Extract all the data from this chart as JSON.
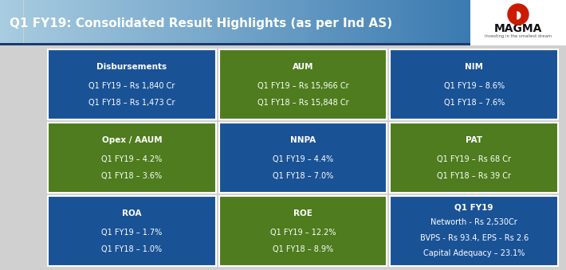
{
  "title": "Q1 FY19: Consolidated Result Highlights (as per Ind AS)",
  "header_bg_left": "#7ab4d4",
  "header_bg_mid": "#4a8ab8",
  "header_text_color": "#ffffff",
  "bg_color": "#d0d0d0",
  "blue": "#1a5296",
  "green": "#4e7c1e",
  "white_text": "#ffffff",
  "cells": [
    {
      "row": 0,
      "col": 0,
      "color": "#1a5296",
      "title": "Disbursements",
      "line1": "Q1 FY19 – Rs 1,840 Cr",
      "line2": "Q1 FY18 – Rs 1,473 Cr",
      "line3": null
    },
    {
      "row": 0,
      "col": 1,
      "color": "#4e7c1e",
      "title": "AUM",
      "line1": "Q1 FY19 – Rs 15,966 Cr",
      "line2": "Q1 FY18 – Rs 15,848 Cr",
      "line3": null
    },
    {
      "row": 0,
      "col": 2,
      "color": "#1a5296",
      "title": "NIM",
      "line1": "Q1 FY19 – 8.6%",
      "line2": "Q1 FY18 – 7.6%",
      "line3": null
    },
    {
      "row": 1,
      "col": 0,
      "color": "#4e7c1e",
      "title": "Opex / AAUM",
      "line1": "Q1 FY19 – 4.2%",
      "line2": "Q1 FY18 – 3.6%",
      "line3": null
    },
    {
      "row": 1,
      "col": 1,
      "color": "#1a5296",
      "title": "NNPA",
      "line1": "Q1 FY19 – 4.4%",
      "line2": "Q1 FY18 – 7.0%",
      "line3": null
    },
    {
      "row": 1,
      "col": 2,
      "color": "#4e7c1e",
      "title": "PAT",
      "line1": "Q1 FY19 – Rs 68 Cr",
      "line2": "Q1 FY18 – Rs 39 Cr",
      "line3": null
    },
    {
      "row": 2,
      "col": 0,
      "color": "#1a5296",
      "title": "ROA",
      "line1": "Q1 FY19 – 1.7%",
      "line2": "Q1 FY18 – 1.0%",
      "line3": null
    },
    {
      "row": 2,
      "col": 1,
      "color": "#4e7c1e",
      "title": "ROE",
      "line1": "Q1 FY19 – 12.2%",
      "line2": "Q1 FY18 – 8.9%",
      "line3": null
    },
    {
      "row": 2,
      "col": 2,
      "color": "#1a5296",
      "title": "Q1 FY19",
      "line1": "Networth - Rs 2,530Cr",
      "line2": "BVPS - Rs 93.4, EPS - Rs 2.6",
      "line3": "Capital Adequacy – 23.1%"
    }
  ]
}
